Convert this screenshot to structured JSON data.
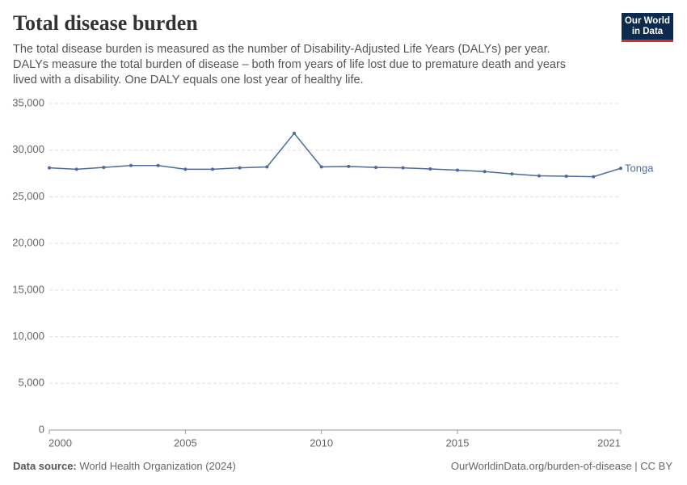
{
  "chart_data": {
    "type": "line",
    "title": "Total disease burden",
    "subtitle": "The total disease burden is measured as the number of Disability-Adjusted Life Years (DALYs) per year. DALYs measure the total burden of disease – both from years of life lost due to premature death and years lived with a disability. One DALY equals one lost year of healthy life.",
    "logo": "Our World in Data",
    "source_label": "Data source:",
    "source": "World Health Organization (2024)",
    "url": "OurWorldinData.org/burden-of-disease | CC BY",
    "x": [
      2000,
      2001,
      2002,
      2003,
      2004,
      2005,
      2006,
      2007,
      2008,
      2009,
      2010,
      2011,
      2012,
      2013,
      2014,
      2015,
      2016,
      2017,
      2018,
      2019,
      2020,
      2021
    ],
    "series": [
      {
        "name": "Tonga",
        "color": "#4c6a9c",
        "values": [
          28100,
          27950,
          28150,
          28350,
          28350,
          27950,
          27950,
          28100,
          28200,
          31800,
          28200,
          28250,
          28150,
          28100,
          27980,
          27850,
          27700,
          27450,
          27250,
          27200,
          27150,
          28050
        ]
      }
    ],
    "xlim": [
      2000,
      2021
    ],
    "xticks": [
      2000,
      2005,
      2010,
      2015,
      2021
    ],
    "ylim": [
      0,
      35000
    ],
    "yticks": [
      0,
      {
        "value": 5000,
        "label": "5,000"
      },
      {
        "value": 10000,
        "label": "10,000"
      },
      {
        "value": 15000,
        "label": "15,000"
      },
      {
        "value": 20000,
        "label": "20,000"
      },
      {
        "value": 25000,
        "label": "25,000"
      },
      {
        "value": 30000,
        "label": "30,000"
      },
      {
        "value": 35000,
        "label": "35,000"
      }
    ],
    "grid": true
  }
}
